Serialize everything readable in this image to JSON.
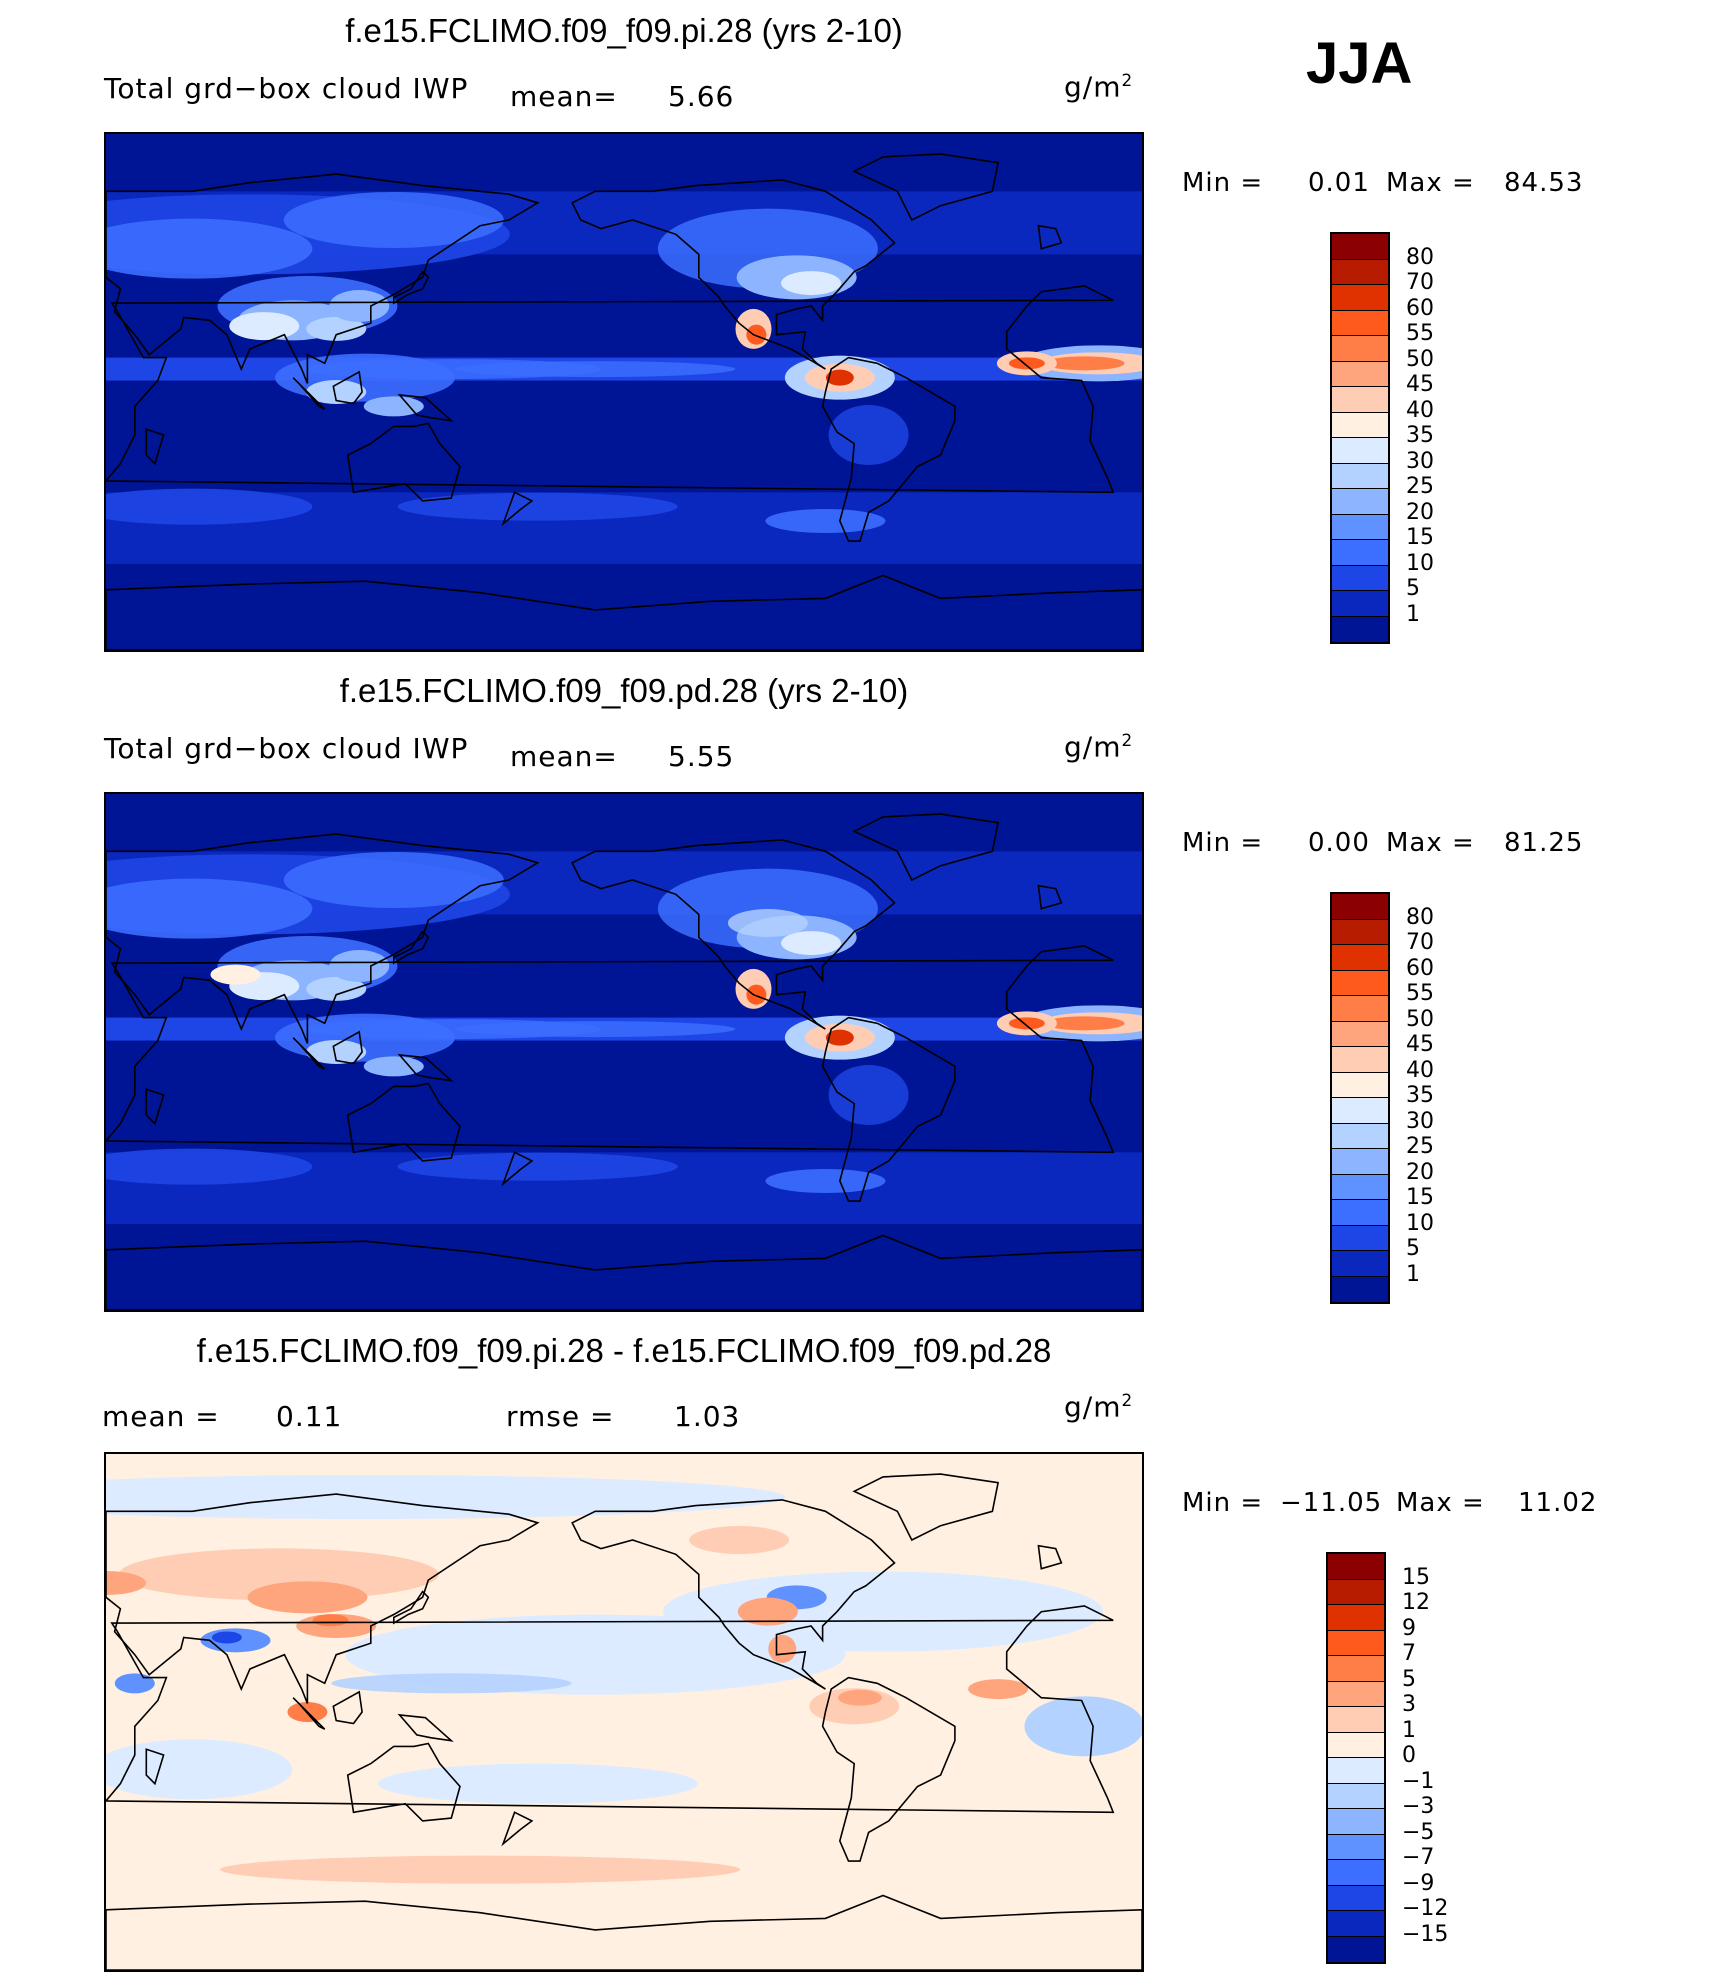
{
  "season": "JJA",
  "units_base": "g/m",
  "units_exp": "2",
  "panels": [
    {
      "title": "f.e15.FCLIMO.f09_f09.pi.28 (yrs 2-10)",
      "variable": "Total grd−box cloud IWP",
      "mean_label": "mean=",
      "mean_value": "5.66",
      "min_label": "Min =",
      "min_value": "0.01",
      "max_label": "Max =",
      "max_value": "84.53",
      "colorbar": {
        "labels": [
          "80",
          "70",
          "60",
          "55",
          "50",
          "45",
          "40",
          "35",
          "30",
          "25",
          "20",
          "15",
          "10",
          "5",
          "1"
        ],
        "colors": [
          "#8b0000",
          "#b71c00",
          "#e03200",
          "#ff5a1e",
          "#ff7d46",
          "#ffa57d",
          "#ffcdb4",
          "#fff0e1",
          "#dcebff",
          "#b4d2ff",
          "#8cb4ff",
          "#5f91ff",
          "#3c6eff",
          "#1e46e6",
          "#0a28be",
          "#001496"
        ]
      },
      "palette": [
        "#001496",
        "#0a28be",
        "#1e46e6",
        "#3c6eff",
        "#5f91ff",
        "#8cb4ff",
        "#b4d2ff",
        "#dcebff",
        "#fff0e1",
        "#ffcdb4",
        "#ffa57d",
        "#ff7d46",
        "#ff5a1e",
        "#e03200",
        "#b71c00",
        "#8b0000"
      ],
      "field": "pi"
    },
    {
      "title": "f.e15.FCLIMO.f09_f09.pd.28 (yrs 2-10)",
      "variable": "Total grd−box cloud IWP",
      "mean_label": "mean=",
      "mean_value": "5.55",
      "min_label": "Min =",
      "min_value": "0.00",
      "max_label": "Max =",
      "max_value": "81.25",
      "colorbar": {
        "labels": [
          "80",
          "70",
          "60",
          "55",
          "50",
          "45",
          "40",
          "35",
          "30",
          "25",
          "20",
          "15",
          "10",
          "5",
          "1"
        ],
        "colors": [
          "#8b0000",
          "#b71c00",
          "#e03200",
          "#ff5a1e",
          "#ff7d46",
          "#ffa57d",
          "#ffcdb4",
          "#fff0e1",
          "#dcebff",
          "#b4d2ff",
          "#8cb4ff",
          "#5f91ff",
          "#3c6eff",
          "#1e46e6",
          "#0a28be",
          "#001496"
        ]
      },
      "palette": [
        "#001496",
        "#0a28be",
        "#1e46e6",
        "#3c6eff",
        "#5f91ff",
        "#8cb4ff",
        "#b4d2ff",
        "#dcebff",
        "#fff0e1",
        "#ffcdb4",
        "#ffa57d",
        "#ff7d46",
        "#ff5a1e",
        "#e03200",
        "#b71c00",
        "#8b0000"
      ],
      "field": "pd"
    },
    {
      "title": "f.e15.FCLIMO.f09_f09.pi.28 - f.e15.FCLIMO.f09_f09.pd.28",
      "mean_label": "mean =",
      "mean_value": "0.11",
      "rmse_label": "rmse =",
      "rmse_value": "1.03",
      "min_label": "Min =",
      "min_value": "−11.05",
      "max_label": "Max =",
      "max_value": "11.02",
      "colorbar": {
        "labels": [
          "15",
          "12",
          "9",
          "7",
          "5",
          "3",
          "1",
          "0",
          "−1",
          "−3",
          "−5",
          "−7",
          "−9",
          "−12",
          "−15"
        ],
        "colors": [
          "#8b0000",
          "#b71c00",
          "#e03200",
          "#ff5a1e",
          "#ff7d46",
          "#ffa57d",
          "#ffcdb4",
          "#fff0e1",
          "#dcebff",
          "#b4d2ff",
          "#8cb4ff",
          "#5f91ff",
          "#3c6eff",
          "#1e46e6",
          "#0a28be",
          "#001496"
        ]
      },
      "field": "diff"
    }
  ]
}
